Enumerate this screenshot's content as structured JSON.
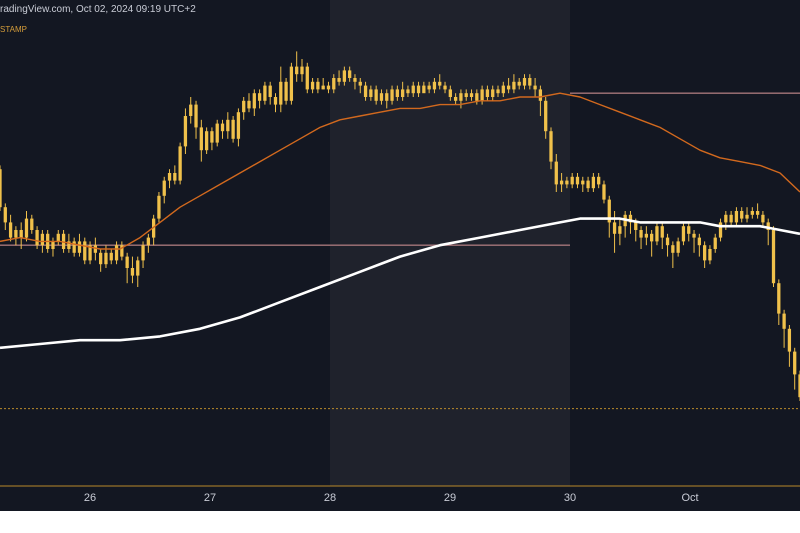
{
  "header": {
    "source_text": "radingView.com, Oct 02, 2024 09:19 UTC+2",
    "symbol_fragment": "STAMP"
  },
  "colors": {
    "background": "#131722",
    "highlight_band": "#1f222c",
    "candle": "#f0c14b",
    "ma_fast": "#d2691e",
    "ma_slow": "#ffffff",
    "level_line": "#a6767a",
    "dotted_level": "#b98a2b",
    "axis_text": "#c9ccd6"
  },
  "chart_data": {
    "type": "candlestick",
    "x_axis": {
      "ticks": [
        "26",
        "27",
        "28",
        "29",
        "30",
        "Oct"
      ],
      "tick_positions": [
        0,
        24,
        48,
        72,
        96,
        120
      ],
      "range_hours": [
        -18,
        142
      ]
    },
    "y_axis": {
      "range": [
        0,
        100
      ]
    },
    "highlight": {
      "from_hour": 48,
      "to_hour": 96
    },
    "ohlc": [
      [
        66,
        56,
        67,
        55
      ],
      [
        56,
        52,
        57,
        50
      ],
      [
        52,
        48,
        54,
        47
      ],
      [
        48,
        50,
        51,
        46
      ],
      [
        50,
        48,
        52,
        45
      ],
      [
        48,
        53,
        55,
        47
      ],
      [
        53,
        50,
        54,
        49
      ],
      [
        50,
        46,
        51,
        45
      ],
      [
        46,
        49,
        50,
        44
      ],
      [
        49,
        45,
        50,
        44
      ],
      [
        45,
        47,
        48,
        43
      ],
      [
        47,
        49,
        50,
        46
      ],
      [
        49,
        45,
        50,
        44
      ],
      [
        45,
        47,
        49,
        44
      ],
      [
        47,
        44,
        48,
        43
      ],
      [
        44,
        47,
        49,
        43
      ],
      [
        47,
        42,
        48,
        41
      ],
      [
        42,
        46,
        47,
        41
      ],
      [
        46,
        44,
        48,
        42
      ],
      [
        44,
        41,
        45,
        39
      ],
      [
        41,
        44,
        46,
        40
      ],
      [
        44,
        42,
        45,
        41
      ],
      [
        42,
        46,
        47,
        41
      ],
      [
        46,
        43,
        47,
        42
      ],
      [
        43,
        40,
        44,
        36
      ],
      [
        40,
        38,
        43,
        36
      ],
      [
        38,
        42,
        43,
        35
      ],
      [
        42,
        46,
        47,
        40
      ],
      [
        46,
        48,
        49,
        44
      ],
      [
        48,
        53,
        54,
        46
      ],
      [
        53,
        59,
        60,
        52
      ],
      [
        59,
        63,
        64,
        57
      ],
      [
        63,
        65,
        66,
        61
      ],
      [
        65,
        63,
        67,
        62
      ],
      [
        63,
        72,
        73,
        62
      ],
      [
        72,
        80,
        82,
        70
      ],
      [
        80,
        83,
        85,
        78
      ],
      [
        83,
        77,
        84,
        74
      ],
      [
        77,
        71,
        79,
        68
      ],
      [
        71,
        76,
        77,
        70
      ],
      [
        76,
        73,
        77,
        71
      ],
      [
        73,
        78,
        79,
        72
      ],
      [
        78,
        76,
        79,
        74
      ],
      [
        76,
        79,
        81,
        74
      ],
      [
        79,
        74,
        80,
        73
      ],
      [
        74,
        81,
        82,
        72
      ],
      [
        81,
        84,
        85,
        79
      ],
      [
        84,
        82,
        86,
        81
      ],
      [
        82,
        86,
        87,
        80
      ],
      [
        86,
        84,
        87,
        82
      ],
      [
        84,
        88,
        89,
        83
      ],
      [
        88,
        85,
        89,
        83
      ],
      [
        85,
        83,
        86,
        81
      ],
      [
        83,
        89,
        93,
        81
      ],
      [
        89,
        84,
        90,
        83
      ],
      [
        84,
        93,
        94,
        83
      ],
      [
        93,
        91,
        97,
        89
      ],
      [
        91,
        93,
        95,
        89
      ],
      [
        93,
        87,
        94,
        86
      ],
      [
        87,
        89,
        90,
        86
      ],
      [
        89,
        87,
        90,
        86
      ],
      [
        87,
        88,
        90,
        87
      ],
      [
        88,
        87,
        89,
        86
      ],
      [
        87,
        90,
        91,
        86
      ],
      [
        90,
        89,
        92,
        88
      ],
      [
        89,
        92,
        93,
        88
      ],
      [
        92,
        90,
        93,
        89
      ],
      [
        90,
        89,
        91,
        87
      ],
      [
        89,
        88,
        90,
        86
      ],
      [
        88,
        85,
        89,
        84
      ],
      [
        85,
        87,
        88,
        84
      ],
      [
        87,
        84,
        88,
        83
      ],
      [
        84,
        86,
        87,
        83
      ],
      [
        86,
        84,
        87,
        82
      ],
      [
        84,
        87,
        88,
        83
      ],
      [
        87,
        85,
        88,
        84
      ],
      [
        85,
        87,
        89,
        84
      ],
      [
        87,
        86,
        88,
        85
      ],
      [
        86,
        88,
        89,
        85
      ],
      [
        88,
        86,
        89,
        85
      ],
      [
        86,
        88,
        89,
        87
      ],
      [
        88,
        87,
        89,
        86
      ],
      [
        87,
        89,
        90,
        86
      ],
      [
        89,
        88,
        91,
        87
      ],
      [
        88,
        87,
        89,
        86
      ],
      [
        87,
        85,
        88,
        84
      ],
      [
        85,
        84,
        86,
        83
      ],
      [
        84,
        86,
        87,
        82
      ],
      [
        86,
        85,
        87,
        84
      ],
      [
        85,
        86,
        87,
        84
      ],
      [
        86,
        84,
        87,
        83
      ],
      [
        84,
        87,
        88,
        83
      ],
      [
        87,
        85,
        88,
        84
      ],
      [
        85,
        87,
        88,
        84
      ],
      [
        87,
        86,
        88,
        85
      ],
      [
        86,
        88,
        89,
        85
      ],
      [
        88,
        87,
        90,
        86
      ],
      [
        87,
        89,
        91,
        86
      ],
      [
        89,
        88,
        90,
        87
      ],
      [
        88,
        90,
        91,
        87
      ],
      [
        90,
        88,
        91,
        87
      ],
      [
        88,
        87,
        90,
        85
      ],
      [
        87,
        84,
        88,
        80
      ],
      [
        84,
        76,
        85,
        74
      ],
      [
        76,
        68,
        77,
        66
      ],
      [
        68,
        62,
        70,
        60
      ],
      [
        62,
        63,
        65,
        60
      ],
      [
        63,
        62,
        64,
        61
      ],
      [
        62,
        64,
        65,
        61
      ],
      [
        64,
        62,
        65,
        61
      ],
      [
        62,
        63,
        64,
        60
      ],
      [
        63,
        61,
        64,
        60
      ],
      [
        61,
        64,
        65,
        60
      ],
      [
        64,
        62,
        65,
        61
      ],
      [
        62,
        58,
        63,
        57
      ],
      [
        58,
        52,
        59,
        48
      ],
      [
        52,
        49,
        55,
        44
      ],
      [
        49,
        51,
        53,
        46
      ],
      [
        51,
        54,
        55,
        48
      ],
      [
        54,
        52,
        55,
        49
      ],
      [
        52,
        50,
        53,
        47
      ],
      [
        50,
        48,
        51,
        45
      ],
      [
        48,
        49,
        51,
        46
      ],
      [
        49,
        47,
        50,
        43
      ],
      [
        47,
        51,
        52,
        46
      ],
      [
        51,
        48,
        52,
        45
      ],
      [
        48,
        46,
        49,
        43
      ],
      [
        46,
        44,
        47,
        40
      ],
      [
        44,
        47,
        48,
        43
      ],
      [
        47,
        51,
        52,
        46
      ],
      [
        51,
        49,
        52,
        47
      ],
      [
        49,
        48,
        50,
        44
      ],
      [
        48,
        46,
        49,
        43
      ],
      [
        46,
        42,
        47,
        40
      ],
      [
        42,
        45,
        46,
        41
      ],
      [
        45,
        48,
        49,
        44
      ],
      [
        48,
        52,
        53,
        47
      ],
      [
        52,
        54,
        55,
        50
      ],
      [
        54,
        52,
        55,
        51
      ],
      [
        52,
        55,
        56,
        51
      ],
      [
        55,
        53,
        56,
        52
      ],
      [
        53,
        54,
        56,
        52
      ],
      [
        54,
        55,
        56,
        53
      ],
      [
        55,
        54,
        57,
        53
      ],
      [
        54,
        52,
        55,
        51
      ],
      [
        52,
        50,
        53,
        46
      ],
      [
        50,
        36,
        51,
        35
      ],
      [
        36,
        28,
        37,
        25
      ],
      [
        28,
        24,
        29,
        19
      ],
      [
        24,
        18,
        25,
        14
      ],
      [
        18,
        12,
        19,
        8
      ],
      [
        12,
        6,
        13,
        5
      ]
    ],
    "series": [
      {
        "values": [
          [
            -18,
            47
          ],
          [
            -14,
            48
          ],
          [
            -10,
            47
          ],
          [
            -6,
            47
          ],
          [
            -2,
            46
          ],
          [
            2,
            45
          ],
          [
            6,
            45
          ],
          [
            10,
            48
          ],
          [
            14,
            52
          ],
          [
            18,
            56
          ],
          [
            22,
            59
          ],
          [
            26,
            62
          ],
          [
            30,
            65
          ],
          [
            34,
            68
          ],
          [
            38,
            71
          ],
          [
            42,
            74
          ],
          [
            46,
            77
          ],
          [
            50,
            79
          ],
          [
            54,
            80
          ],
          [
            58,
            81
          ],
          [
            62,
            82
          ],
          [
            66,
            82
          ],
          [
            70,
            83
          ],
          [
            74,
            83
          ],
          [
            78,
            84
          ],
          [
            82,
            84
          ],
          [
            86,
            85
          ],
          [
            90,
            85
          ],
          [
            94,
            86
          ],
          [
            98,
            85
          ],
          [
            102,
            83
          ],
          [
            106,
            81
          ],
          [
            110,
            79
          ],
          [
            114,
            77
          ],
          [
            118,
            74
          ],
          [
            122,
            71
          ],
          [
            126,
            69
          ],
          [
            130,
            68
          ],
          [
            134,
            67
          ],
          [
            138,
            65
          ],
          [
            142,
            60
          ]
        ]
      },
      {
        "values": [
          [
            -18,
            19
          ],
          [
            -10,
            20
          ],
          [
            -2,
            21
          ],
          [
            6,
            21
          ],
          [
            14,
            22
          ],
          [
            22,
            24
          ],
          [
            30,
            27
          ],
          [
            38,
            31
          ],
          [
            46,
            35
          ],
          [
            54,
            39
          ],
          [
            62,
            43
          ],
          [
            70,
            46
          ],
          [
            78,
            48
          ],
          [
            86,
            50
          ],
          [
            94,
            52
          ],
          [
            98,
            53
          ],
          [
            102,
            53
          ],
          [
            106,
            53
          ],
          [
            110,
            52
          ],
          [
            114,
            52
          ],
          [
            118,
            52
          ],
          [
            122,
            52
          ],
          [
            126,
            51
          ],
          [
            130,
            51
          ],
          [
            134,
            51
          ],
          [
            138,
            50
          ],
          [
            142,
            49
          ]
        ]
      }
    ],
    "levels": [
      {
        "value": 86,
        "from_hour": 96,
        "to_hour": 142
      },
      {
        "value": 46,
        "from_hour": -18,
        "to_hour": 96
      }
    ],
    "dotted_level": 3
  }
}
